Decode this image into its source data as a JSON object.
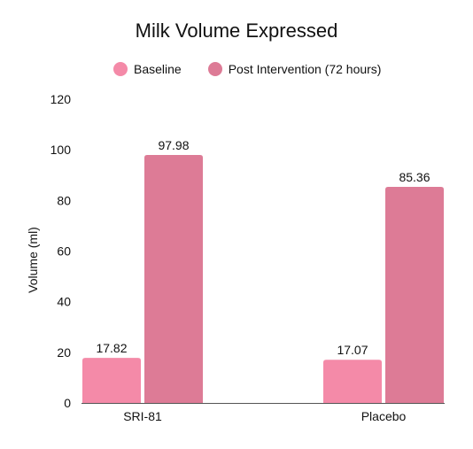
{
  "chart_data": {
    "type": "bar",
    "title": "Milk Volume Expressed",
    "xlabel": "",
    "ylabel": "Volume (ml)",
    "categories": [
      "SRI-81",
      "Placebo"
    ],
    "series": [
      {
        "name": "Baseline",
        "values": [
          17.82,
          17.07
        ],
        "color": "#f48aa8"
      },
      {
        "name": "Post Intervention (72 hours)",
        "values": [
          97.98,
          85.36
        ],
        "color": "#dd7b96"
      }
    ],
    "ylim": [
      0,
      120
    ],
    "yticks": [
      0,
      20,
      40,
      60,
      80,
      100,
      120
    ],
    "grid": false,
    "legend_position": "top",
    "data_labels": [
      [
        "17.82",
        "17.07"
      ],
      [
        "97.98",
        "85.36"
      ]
    ]
  },
  "colors": {
    "axis": "#555555",
    "text": "#111111"
  }
}
